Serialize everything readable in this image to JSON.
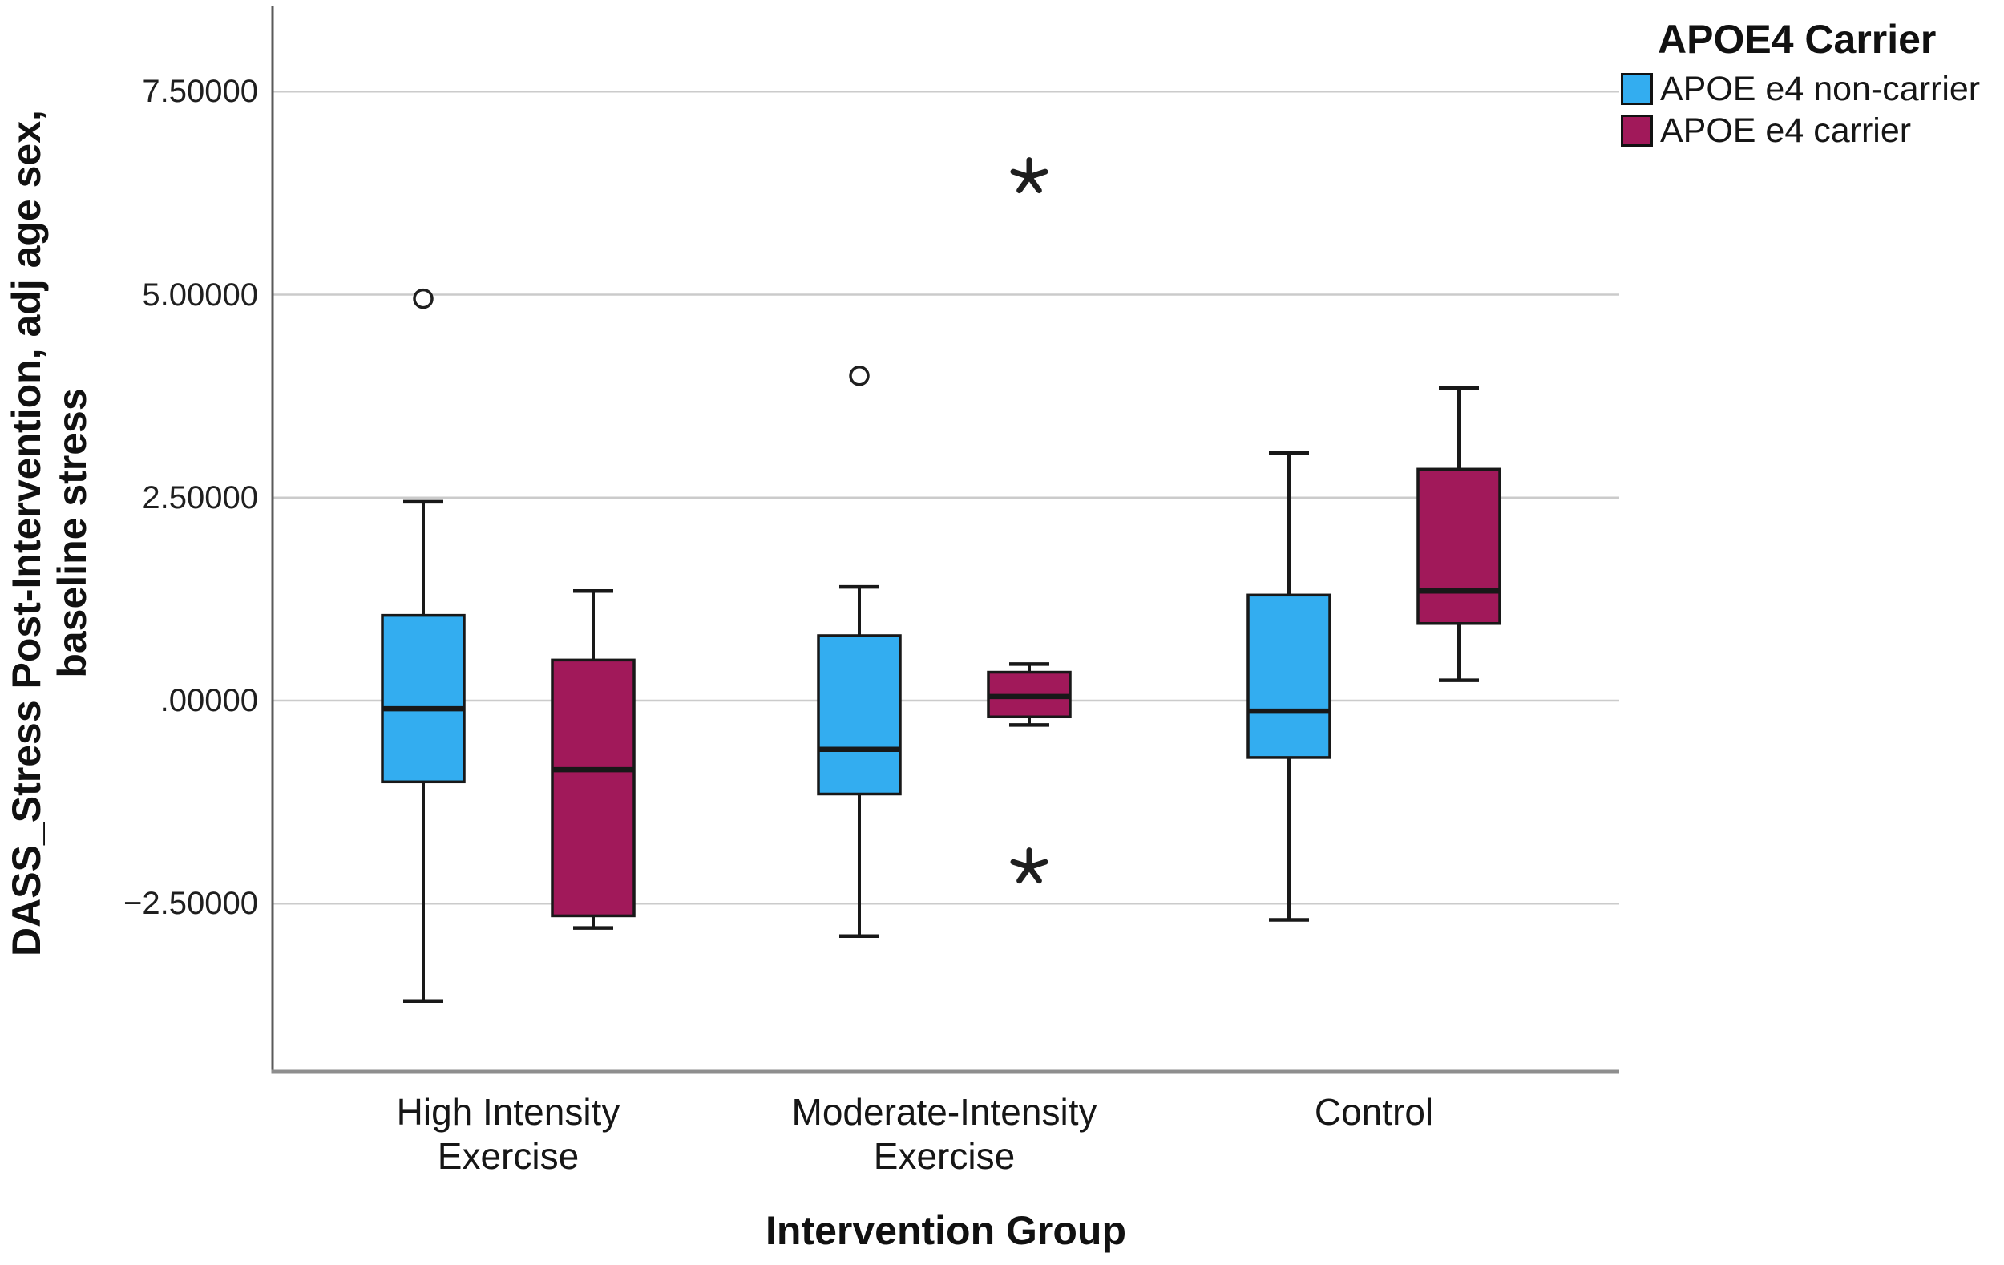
{
  "legend": {
    "title": "APOE4 Carrier",
    "items": [
      {
        "label": "APOE e4 non-carrier",
        "color": "#33ADF0"
      },
      {
        "label": "APOE e4 carrier",
        "color": "#A1195A"
      }
    ]
  },
  "axes": {
    "y": {
      "title_lines": [
        "DASS_Stress Post-Intervention, adj age sex,",
        "baseline stress"
      ],
      "ticks": [
        {
          "value": 7.5,
          "label": "7.50000"
        },
        {
          "value": 5.0,
          "label": "5.00000"
        },
        {
          "value": 2.5,
          "label": "2.50000"
        },
        {
          "value": 0.0,
          "label": ".00000"
        },
        {
          "value": -2.5,
          "label": "−2.50000"
        }
      ]
    },
    "x": {
      "title": "Intervention Group",
      "categories": [
        {
          "lines": [
            "High Intensity",
            "Exercise"
          ]
        },
        {
          "lines": [
            "Moderate-Intensity",
            "Exercise"
          ]
        },
        {
          "lines": [
            "Control"
          ]
        }
      ]
    }
  },
  "colors": {
    "grid": "#CBCBCB",
    "y_axis": "#5A5A5A",
    "x_axis": "#8E8E8E",
    "box_stroke": "#181818",
    "outlier": "#1F1F1F",
    "background": "#FFFFFF"
  },
  "chart_data": {
    "type": "boxplot",
    "title": "",
    "xlabel": "Intervention Group",
    "ylabel": "DASS_Stress Post-Intervention, adj age sex, baseline stress",
    "grid": true,
    "legend_position": "top-right",
    "legend_title": "APOE4 Carrier",
    "ylim": [
      -4.57,
      8.55
    ],
    "yticks": [
      -2.5,
      0.0,
      2.5,
      5.0,
      7.5
    ],
    "categories": [
      "High Intensity Exercise",
      "Moderate-Intensity Exercise",
      "Control"
    ],
    "series": [
      {
        "name": "APOE e4 non-carrier",
        "color": "#33ADF0",
        "boxes": [
          {
            "category": "High Intensity Exercise",
            "min": -3.7,
            "q1": -1.0,
            "median": -0.1,
            "q3": 1.05,
            "max": 2.45,
            "outliers": [
              {
                "glyph": "circle",
                "value": 4.95
              }
            ]
          },
          {
            "category": "Moderate-Intensity Exercise",
            "min": -2.9,
            "q1": -1.15,
            "median": -0.6,
            "q3": 0.8,
            "max": 1.4,
            "outliers": [
              {
                "glyph": "circle",
                "value": 4.0
              }
            ]
          },
          {
            "category": "Control",
            "min": -2.7,
            "q1": -0.7,
            "median": -0.13,
            "q3": 1.3,
            "max": 3.05,
            "outliers": []
          }
        ]
      },
      {
        "name": "APOE e4 carrier",
        "color": "#A1195A",
        "boxes": [
          {
            "category": "High Intensity Exercise",
            "min": -2.8,
            "q1": -2.65,
            "median": -0.85,
            "q3": 0.5,
            "max": 1.35,
            "outliers": []
          },
          {
            "category": "Moderate-Intensity Exercise",
            "min": -0.3,
            "q1": -0.2,
            "median": 0.05,
            "q3": 0.35,
            "max": 0.45,
            "outliers": [
              {
                "glyph": "asterisk",
                "value": 6.45
              },
              {
                "glyph": "asterisk",
                "value": -2.05
              }
            ]
          },
          {
            "category": "Control",
            "min": 0.25,
            "q1": 0.95,
            "median": 1.35,
            "q3": 2.85,
            "max": 3.85,
            "outliers": []
          }
        ]
      }
    ]
  }
}
